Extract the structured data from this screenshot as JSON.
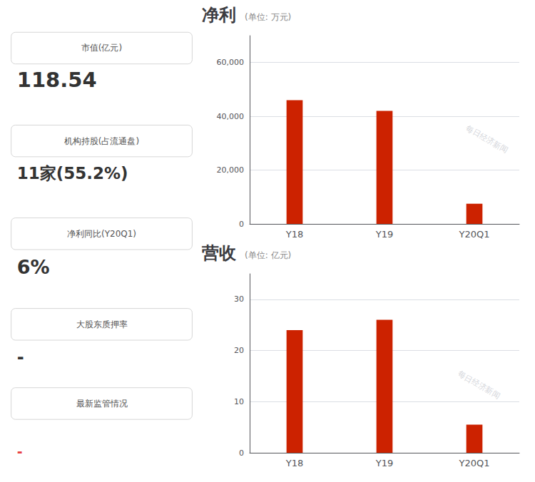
{
  "chart_data": [
    {
      "type": "bar",
      "title": "净利",
      "subtitle": "(单位: 万元)",
      "categories": [
        "Y18",
        "Y19",
        "Y20Q1"
      ],
      "values": [
        46000,
        42000,
        7500
      ],
      "color": "#cc2200",
      "ylim": [
        0,
        70000
      ],
      "yticks": [
        0,
        {
          "value": 20000,
          "label": "20,000"
        },
        {
          "value": 40000,
          "label": "40,000"
        },
        {
          "value": 60000,
          "label": "60,000"
        }
      ],
      "grid": true,
      "annotations": [
        {
          "label": "市值(亿元)",
          "text": "118.54"
        },
        {
          "label": "机构持股(占流通盘)",
          "text": "11家(55.2%)"
        },
        {
          "label": "净利同比(Y20Q1)",
          "text": "6%"
        },
        {
          "label": "大股东质押率",
          "text": "-"
        },
        {
          "label": "最新监管情况",
          "text": "-",
          "color": "#e84040"
        },
        {
          "text": "每日经济新闻"
        }
      ]
    },
    {
      "type": "bar",
      "title": "营收",
      "subtitle": "(单位: 亿元)",
      "categories": [
        "Y18",
        "Y19",
        "Y20Q1"
      ],
      "values": [
        24.0,
        26.0,
        5.5
      ],
      "color": "#cc2200",
      "ylim": [
        0,
        35
      ],
      "yticks": [
        0,
        10,
        20,
        30
      ],
      "grid": true,
      "annotations": [
        {
          "text": "每日经济新闻"
        }
      ]
    }
  ]
}
